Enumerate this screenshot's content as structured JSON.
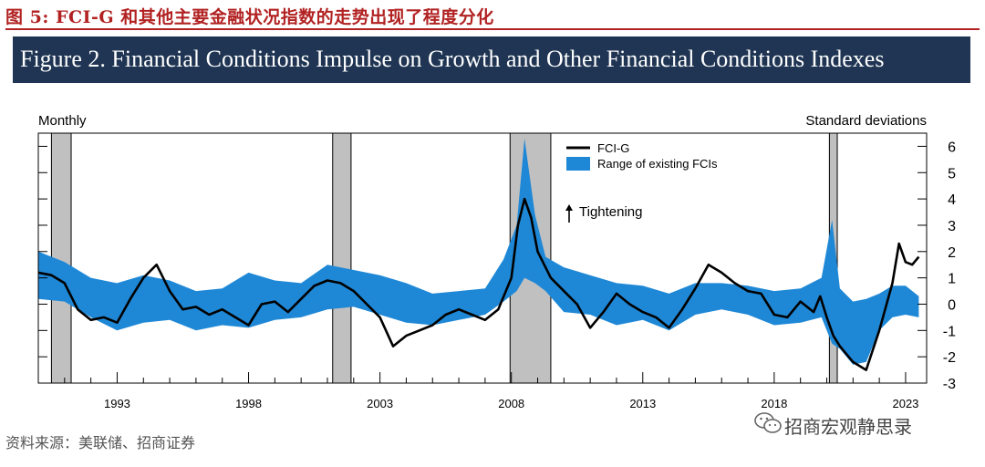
{
  "page": {
    "caption": "图 5:  FCI-G 和其他主要金融状况指数的走势出现了程度分化",
    "figure_title": "Figure 2. Financial Conditions Impulse on Growth and Other Financial Conditions Indexes",
    "source": "资料来源：美联储、招商证券",
    "watermark": "招商宏观静思录"
  },
  "colors": {
    "accent_red": "#b22222",
    "banner": "#1f3553",
    "band": "#1f88d6",
    "line": "#000000",
    "recession": "#c0c0c0"
  },
  "chart_data": {
    "type": "line",
    "title": "Figure 2. Financial Conditions Impulse on Growth and Other Financial Conditions Indexes",
    "left_label": "Monthly",
    "right_label": "Standard deviations",
    "annotation": "Tightening",
    "xlim": [
      1990.0,
      2023.8
    ],
    "ylim": [
      -3,
      6.5
    ],
    "x_ticks": [
      1993,
      1998,
      2003,
      2008,
      2013,
      2018,
      2023
    ],
    "y_ticks": [
      -3,
      -2,
      -1,
      0,
      1,
      2,
      3,
      4,
      5,
      6
    ],
    "legend": [
      {
        "name": "FCI-G",
        "kind": "line"
      },
      {
        "name": "Range of existing FCIs",
        "kind": "band"
      }
    ],
    "recessions": [
      [
        1990.5,
        1991.25
      ],
      [
        2001.2,
        2001.9
      ],
      [
        2007.95,
        2009.5
      ],
      [
        2020.1,
        2020.4
      ]
    ],
    "band": {
      "x": [
        1990,
        1991,
        1992,
        1993,
        1994,
        1995,
        1996,
        1997,
        1998,
        1999,
        2000,
        2001,
        2002,
        2003,
        2004,
        2005,
        2006,
        2007,
        2007.7,
        2008.2,
        2008.5,
        2008.9,
        2009.3,
        2010,
        2011,
        2012,
        2013,
        2014,
        2015,
        2016,
        2017,
        2018,
        2019,
        2019.8,
        2020.2,
        2020.5,
        2021,
        2021.5,
        2022,
        2022.5,
        2023,
        2023.5
      ],
      "upper": [
        2.0,
        1.6,
        1.0,
        0.8,
        1.1,
        0.9,
        0.5,
        0.6,
        1.2,
        0.9,
        0.8,
        1.5,
        1.3,
        1.1,
        0.8,
        0.4,
        0.5,
        0.6,
        1.7,
        3.0,
        6.3,
        3.4,
        1.8,
        1.4,
        1.1,
        0.8,
        0.7,
        0.4,
        0.8,
        0.8,
        0.7,
        0.5,
        0.6,
        1.0,
        3.2,
        0.6,
        0.1,
        0.2,
        0.4,
        0.7,
        0.7,
        0.3
      ],
      "lower": [
        0.2,
        0.1,
        -0.5,
        -1.0,
        -0.7,
        -0.6,
        -1.0,
        -0.8,
        -0.9,
        -0.6,
        -0.5,
        -0.2,
        -0.1,
        -0.4,
        -0.7,
        -0.8,
        -0.6,
        -0.4,
        0.1,
        0.5,
        1.0,
        0.8,
        0.5,
        -0.3,
        -0.4,
        -0.8,
        -0.6,
        -1.0,
        -0.4,
        -0.2,
        -0.4,
        -0.8,
        -0.7,
        -0.5,
        -1.5,
        -1.7,
        -2.3,
        -2.2,
        -1.0,
        -0.5,
        -0.4,
        -0.5
      ]
    },
    "series": [
      {
        "name": "FCI-G",
        "x": [
          1990,
          1990.5,
          1991,
          1991.5,
          1992,
          1992.5,
          1993,
          1993.5,
          1994,
          1994.5,
          1995,
          1995.5,
          1996,
          1996.5,
          1997,
          1997.5,
          1998,
          1998.5,
          1999,
          1999.5,
          2000,
          2000.5,
          2001,
          2001.5,
          2002,
          2002.5,
          2003,
          2003.5,
          2004,
          2004.5,
          2005,
          2005.5,
          2006,
          2006.5,
          2007,
          2007.5,
          2008,
          2008.25,
          2008.5,
          2008.75,
          2009,
          2009.5,
          2010,
          2010.5,
          2011,
          2011.5,
          2012,
          2012.5,
          2013,
          2013.5,
          2014,
          2014.5,
          2015,
          2015.5,
          2016,
          2016.5,
          2017,
          2017.5,
          2018,
          2018.5,
          2019,
          2019.5,
          2019.75,
          2020,
          2020.25,
          2020.5,
          2021,
          2021.5,
          2022,
          2022.5,
          2022.75,
          2023,
          2023.25,
          2023.5
        ],
        "values": [
          1.2,
          1.1,
          0.8,
          -0.2,
          -0.6,
          -0.5,
          -0.7,
          0.2,
          1.0,
          1.5,
          0.5,
          -0.2,
          -0.1,
          -0.4,
          -0.2,
          -0.5,
          -0.8,
          0.0,
          0.1,
          -0.3,
          0.2,
          0.7,
          0.9,
          0.8,
          0.5,
          0.0,
          -0.5,
          -1.6,
          -1.2,
          -1.0,
          -0.8,
          -0.4,
          -0.2,
          -0.4,
          -0.6,
          -0.2,
          1.0,
          3.0,
          4.0,
          3.3,
          2.0,
          1.0,
          0.5,
          0.0,
          -0.9,
          -0.3,
          0.4,
          0.0,
          -0.3,
          -0.5,
          -0.9,
          -0.2,
          0.6,
          1.5,
          1.2,
          0.8,
          0.5,
          0.4,
          -0.4,
          -0.5,
          0.1,
          -0.3,
          0.3,
          -0.5,
          -1.2,
          -1.6,
          -2.2,
          -2.5,
          -1.0,
          0.8,
          2.3,
          1.6,
          1.5,
          1.8
        ]
      }
    ]
  }
}
